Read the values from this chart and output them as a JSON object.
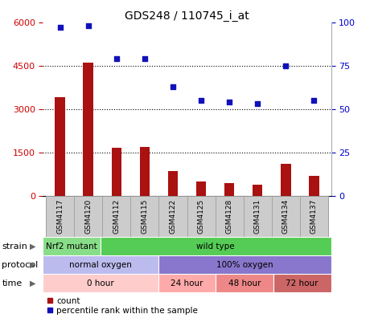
{
  "title": "GDS248 / 110745_i_at",
  "samples": [
    "GSM4117",
    "GSM4120",
    "GSM4112",
    "GSM4115",
    "GSM4122",
    "GSM4125",
    "GSM4128",
    "GSM4131",
    "GSM4134",
    "GSM4137"
  ],
  "counts": [
    3400,
    4600,
    1650,
    1700,
    850,
    500,
    430,
    380,
    1100,
    680
  ],
  "percentiles": [
    97,
    98,
    79,
    79,
    63,
    55,
    54,
    53,
    75,
    55
  ],
  "left_ylim": [
    0,
    6000
  ],
  "right_ylim": [
    0,
    100
  ],
  "left_yticks": [
    0,
    1500,
    3000,
    4500,
    6000
  ],
  "right_yticks": [
    0,
    25,
    50,
    75,
    100
  ],
  "bar_color": "#aa1111",
  "scatter_color": "#1111bb",
  "strain_groups": [
    {
      "label": "Nrf2 mutant",
      "start": 0,
      "end": 2,
      "color": "#88dd88"
    },
    {
      "label": "wild type",
      "start": 2,
      "end": 10,
      "color": "#55cc55"
    }
  ],
  "protocol_groups": [
    {
      "label": "normal oxygen",
      "start": 0,
      "end": 4,
      "color": "#bbbbee"
    },
    {
      "label": "100% oxygen",
      "start": 4,
      "end": 10,
      "color": "#8877cc"
    }
  ],
  "time_groups": [
    {
      "label": "0 hour",
      "start": 0,
      "end": 4,
      "color": "#ffcccc"
    },
    {
      "label": "24 hour",
      "start": 4,
      "end": 6,
      "color": "#ffaaaa"
    },
    {
      "label": "48 hour",
      "start": 6,
      "end": 8,
      "color": "#ee8888"
    },
    {
      "label": "72 hour",
      "start": 8,
      "end": 10,
      "color": "#cc6666"
    }
  ],
  "row_labels": [
    "strain",
    "protocol",
    "time"
  ],
  "legend_items": [
    {
      "label": "count",
      "color": "#aa1111"
    },
    {
      "label": "percentile rank within the sample",
      "color": "#1111bb"
    }
  ],
  "background_color": "#ffffff",
  "tick_label_color_left": "#cc0000",
  "tick_label_color_right": "#0000cc",
  "xlabels_bg": "#cccccc"
}
